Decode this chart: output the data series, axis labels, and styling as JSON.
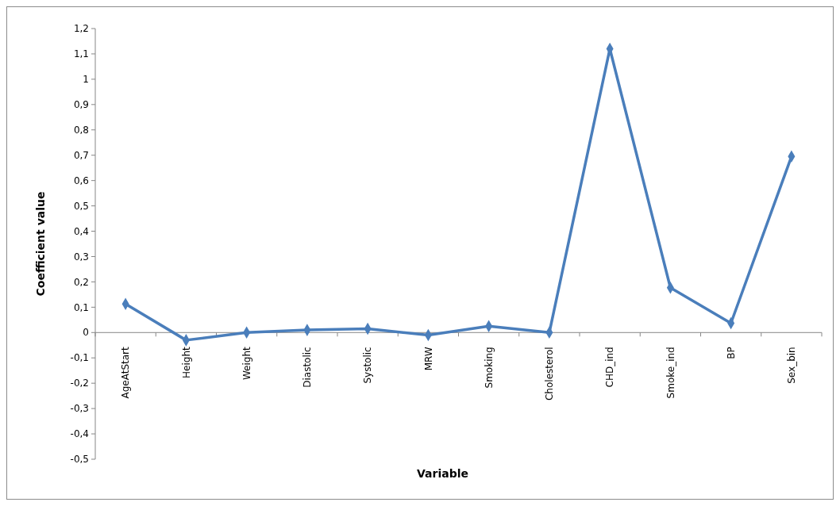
{
  "chart_data": {
    "type": "line",
    "xlabel": "Variable",
    "ylabel": "Coefficient value",
    "categories": [
      "AgeAtStart",
      "Height",
      "Weight",
      "Diastolic",
      "Systolic",
      "MRW",
      "Smoking",
      "Cholesterol",
      "CHD_ind",
      "Smoke_ind",
      "BP",
      "Sex_bin"
    ],
    "series": [
      {
        "color": "#4a7ebb",
        "values": [
          0.113,
          -0.03,
          0,
          0.01,
          0.015,
          -0.01,
          0.025,
          0,
          1.12,
          0.177,
          0.037,
          0.695
        ]
      }
    ],
    "ylim": [
      -0.5,
      1.2
    ],
    "yticks": [
      {
        "value": 1.2,
        "label": "1,2"
      },
      {
        "value": 1.1,
        "label": "1,1"
      },
      1,
      {
        "value": 0.9,
        "label": "0,9"
      },
      {
        "value": 0.8,
        "label": "0,8"
      },
      {
        "value": 0.7,
        "label": "0,7"
      },
      {
        "value": 0.6,
        "label": "0,6"
      },
      {
        "value": 0.5,
        "label": "0,5"
      },
      {
        "value": 0.4,
        "label": "0,4"
      },
      {
        "value": 0.3,
        "label": "0,3"
      },
      {
        "value": 0.2,
        "label": "0,2"
      },
      {
        "value": 0.1,
        "label": "0,1"
      },
      0,
      {
        "value": -0.1,
        "label": "-0,1"
      },
      {
        "value": -0.2,
        "label": "-0,2"
      },
      {
        "value": -0.3,
        "label": "-0,3"
      },
      {
        "value": -0.4,
        "label": "-0,4"
      },
      {
        "value": -0.5,
        "label": "-0,5"
      }
    ],
    "grid": false,
    "marker": "diamond",
    "line_style": "solid"
  }
}
